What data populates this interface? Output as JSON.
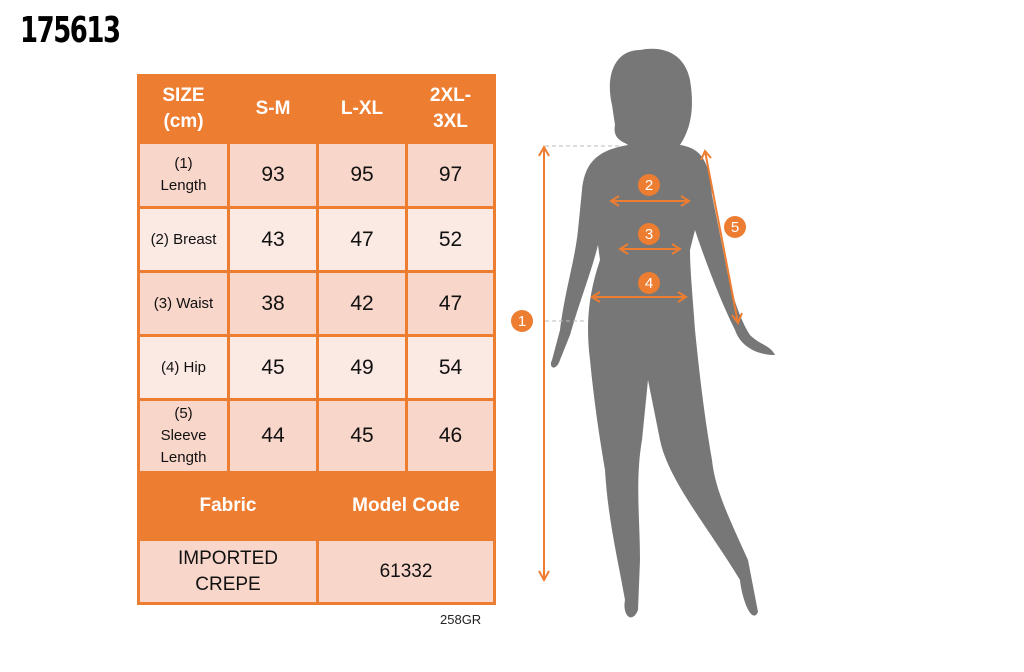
{
  "product_code": "175613",
  "table": {
    "header": [
      "SIZE (cm)",
      "S-M",
      "L-XL",
      "2XL-3XL"
    ],
    "rows": [
      {
        "label": "(1) Length",
        "values": [
          "93",
          "95",
          "97"
        ]
      },
      {
        "label": "(2) Breast",
        "values": [
          "43",
          "47",
          "52"
        ]
      },
      {
        "label": "(3) Waist",
        "values": [
          "38",
          "42",
          "47"
        ]
      },
      {
        "label": "(4) Hip",
        "values": [
          "45",
          "49",
          "54"
        ]
      },
      {
        "label": "(5) Sleeve Length",
        "values": [
          "44",
          "45",
          "46"
        ]
      }
    ],
    "footer_header": [
      "Fabric",
      "Model Code"
    ],
    "footer_values": [
      "IMPORTED CREPE",
      "61332"
    ]
  },
  "footnote": "258GR",
  "diagram": {
    "markers": [
      "1",
      "2",
      "3",
      "4",
      "5"
    ]
  },
  "colors": {
    "accent": "#ed7d31",
    "row_dark": "#f8d6ca",
    "row_light": "#fbe9e3",
    "silhouette": "#777777"
  }
}
